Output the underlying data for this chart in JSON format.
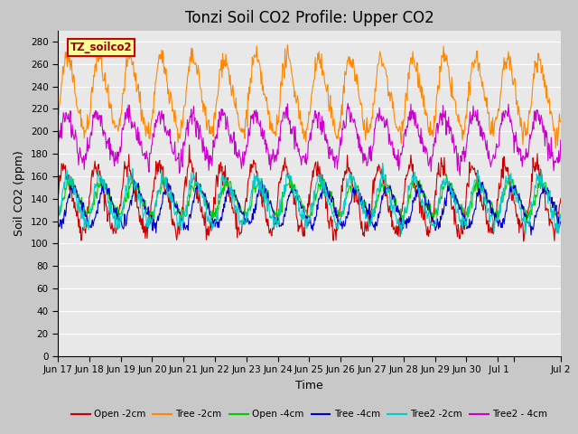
{
  "title": "Tonzi Soil CO2 Profile: Upper CO2",
  "xlabel": "Time",
  "ylabel": "Soil CO2 (ppm)",
  "legend_label": "TZ_soilco2",
  "ylim": [
    0,
    290
  ],
  "yticks": [
    0,
    20,
    40,
    60,
    80,
    100,
    120,
    140,
    160,
    180,
    200,
    220,
    240,
    260,
    280
  ],
  "fig_bg": "#c8c8c8",
  "plot_bg": "#e8e8e8",
  "series": [
    {
      "name": "Open -2cm",
      "color": "#cc0000",
      "base": 140,
      "amp": 28,
      "phase": 0.0,
      "noise": 5
    },
    {
      "name": "Tree -2cm",
      "color": "#ff8800",
      "base": 232,
      "amp": 32,
      "phase": 0.08,
      "noise": 5
    },
    {
      "name": "Open -4cm",
      "color": "#00cc00",
      "base": 140,
      "amp": 14,
      "phase": 0.18,
      "noise": 3
    },
    {
      "name": "Tree -4cm",
      "color": "#0000cc",
      "base": 133,
      "amp": 16,
      "phase": 0.28,
      "noise": 3
    },
    {
      "name": "Tree2 -2cm",
      "color": "#00cccc",
      "base": 138,
      "amp": 20,
      "phase": 0.12,
      "noise": 4
    },
    {
      "name": "Tree2 - 4cm",
      "color": "#cc00cc",
      "base": 195,
      "amp": 20,
      "phase": 0.04,
      "noise": 5
    }
  ],
  "n_points": 800,
  "x_start": 0,
  "x_end": 16,
  "xtick_positions": [
    0,
    1,
    2,
    3,
    4,
    5,
    6,
    7,
    8,
    9,
    10,
    11,
    12,
    13,
    14,
    14.5,
    16
  ],
  "xtick_labels": [
    "Jun 17",
    "Jun 18",
    "Jun 19",
    "Jun 20",
    "Jun 21",
    "Jun 22",
    "Jun 23",
    "Jun 24",
    "Jun 25",
    "Jun 26",
    "Jun 27",
    "Jun 28",
    "Jun 29",
    "Jun 30",
    " Jul 1",
    "",
    "Jul 2"
  ],
  "grid_color": "#ffffff",
  "title_fontsize": 12,
  "axis_label_fontsize": 9,
  "tick_fontsize": 7.5
}
